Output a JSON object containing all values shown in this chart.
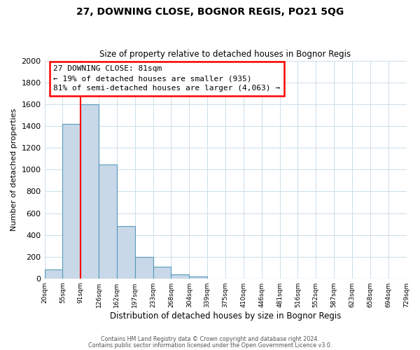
{
  "title": "27, DOWNING CLOSE, BOGNOR REGIS, PO21 5QG",
  "subtitle": "Size of property relative to detached houses in Bognor Regis",
  "xlabel": "Distribution of detached houses by size in Bognor Regis",
  "ylabel": "Number of detached properties",
  "bin_labels": [
    "20sqm",
    "55sqm",
    "91sqm",
    "126sqm",
    "162sqm",
    "197sqm",
    "233sqm",
    "268sqm",
    "304sqm",
    "339sqm",
    "375sqm",
    "410sqm",
    "446sqm",
    "481sqm",
    "516sqm",
    "552sqm",
    "587sqm",
    "623sqm",
    "658sqm",
    "694sqm",
    "729sqm"
  ],
  "bar_values": [
    85,
    1420,
    1600,
    1050,
    480,
    200,
    110,
    35,
    15,
    0,
    0,
    0,
    0,
    0,
    0,
    0,
    0,
    0,
    0,
    0
  ],
  "bar_color": "#c8d8e8",
  "bar_edge_color": "#5599bb",
  "red_line_x": 2,
  "annotation_title": "27 DOWNING CLOSE: 81sqm",
  "annotation_line1": "← 19% of detached houses are smaller (935)",
  "annotation_line2": "81% of semi-detached houses are larger (4,063) →",
  "ylim": [
    0,
    2000
  ],
  "yticks": [
    0,
    200,
    400,
    600,
    800,
    1000,
    1200,
    1400,
    1600,
    1800,
    2000
  ],
  "footer1": "Contains HM Land Registry data © Crown copyright and database right 2024.",
  "footer2": "Contains public sector information licensed under the Open Government Licence v3.0.",
  "bg_color": "#ffffff",
  "grid_color": "#ccdde8"
}
